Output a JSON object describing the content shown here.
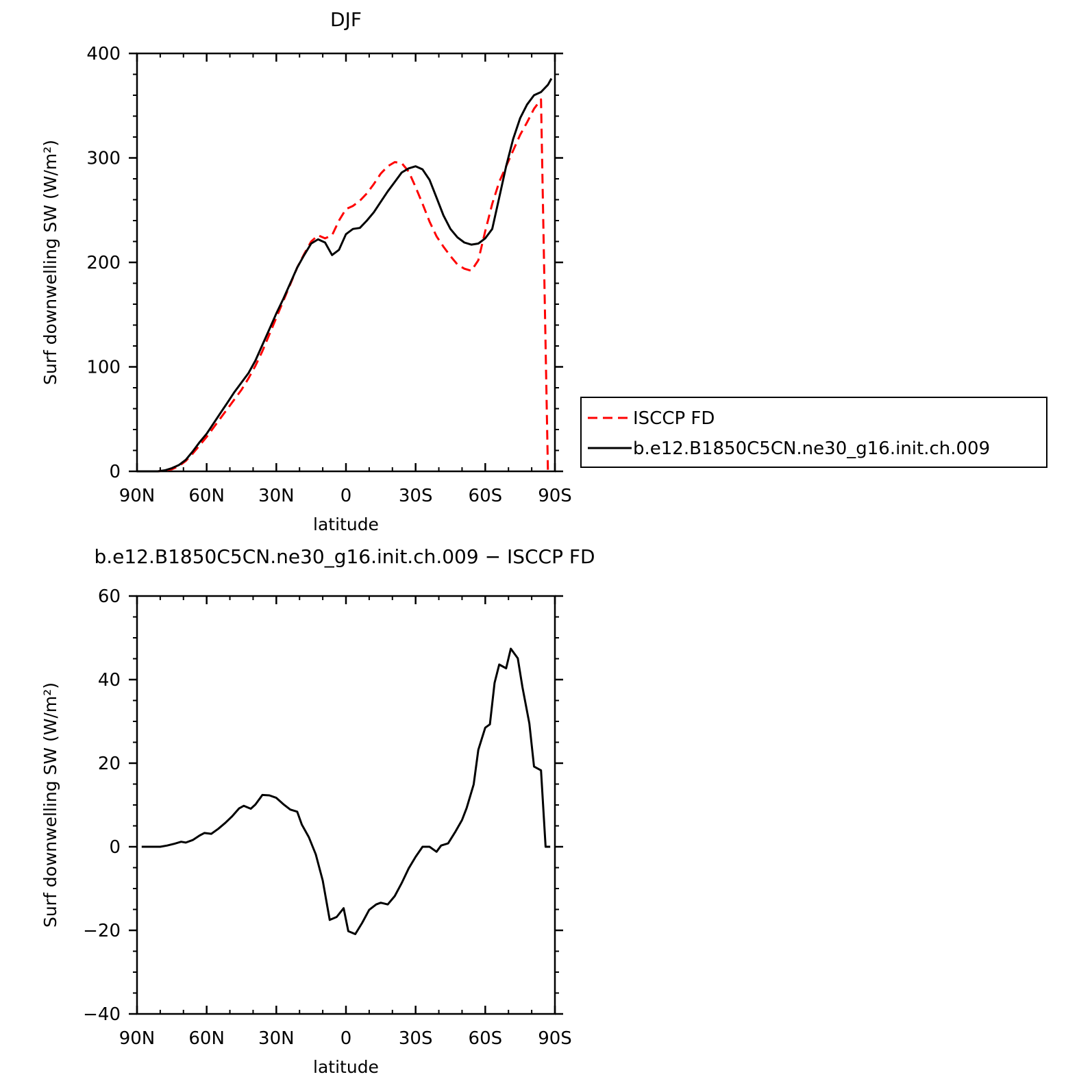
{
  "chart_data": [
    {
      "type": "line",
      "title": "DJF",
      "xlabel": "latitude",
      "ylabel": "Surf downwelling SW (W/m²)",
      "xlim": [
        90,
        -90
      ],
      "ylim": [
        0,
        400
      ],
      "x_ticks": [
        {
          "value": 90,
          "label": "90N"
        },
        {
          "value": 60,
          "label": "60N"
        },
        {
          "value": 30,
          "label": "30N"
        },
        {
          "value": 0,
          "label": "0"
        },
        {
          "value": -30,
          "label": "30S"
        },
        {
          "value": -60,
          "label": "60S"
        },
        {
          "value": -90,
          "label": "90S"
        }
      ],
      "y_ticks": [
        {
          "value": 0,
          "label": "0"
        },
        {
          "value": 100,
          "label": "100"
        },
        {
          "value": 200,
          "label": "200"
        },
        {
          "value": 300,
          "label": "300"
        },
        {
          "value": 400,
          "label": "400"
        }
      ],
      "legend_position": "right",
      "series": [
        {
          "name": "ISCCP FD",
          "color": "#ff0000",
          "dash": "dashed",
          "x": [
            90,
            87,
            84,
            81,
            78,
            75,
            72,
            69,
            66,
            63,
            60,
            57,
            54,
            51,
            48,
            45,
            42,
            39,
            36,
            33,
            30,
            27,
            24,
            21,
            18,
            15,
            12,
            9,
            6,
            3,
            0,
            -3,
            -6,
            -9,
            -12,
            -15,
            -18,
            -21,
            -24,
            -27,
            -30,
            -33,
            -36,
            -39,
            -42,
            -45,
            -48,
            -51,
            -54,
            -57,
            -60,
            -63,
            -66,
            -69,
            -72,
            -75,
            -78,
            -81,
            -84,
            -87,
            -88.5
          ],
          "y": [
            0,
            0,
            0,
            0,
            1,
            2,
            5,
            10,
            17,
            25,
            33,
            42,
            51,
            60,
            69,
            78,
            89,
            101,
            115,
            131,
            147,
            163,
            179,
            195,
            208,
            220,
            226,
            223,
            226,
            240,
            251,
            254,
            259,
            266,
            275,
            285,
            292,
            296,
            295,
            287,
            272,
            256,
            239,
            225,
            215,
            206,
            198,
            194,
            192,
            202,
            230,
            256,
            277,
            292,
            307,
            322,
            334,
            347,
            356,
            0,
            0
          ]
        },
        {
          "name": "b.e12.B1850C5CN.ne30_g16.init.ch.009",
          "color": "#000000",
          "dash": "solid",
          "x": [
            90,
            87,
            84,
            81,
            78,
            75,
            72,
            69,
            66,
            63,
            60,
            57,
            54,
            51,
            48,
            45,
            42,
            39,
            36,
            33,
            30,
            27,
            24,
            21,
            18,
            15,
            12,
            9,
            6,
            3,
            0,
            -3,
            -6,
            -9,
            -12,
            -15,
            -18,
            -21,
            -24,
            -27,
            -30,
            -33,
            -36,
            -39,
            -42,
            -45,
            -48,
            -51,
            -54,
            -57,
            -60,
            -63,
            -66,
            -69,
            -72,
            -75,
            -78,
            -81,
            -84,
            -87,
            -88.5
          ],
          "y": [
            0,
            0,
            0,
            0,
            1,
            3,
            6,
            11,
            19,
            28,
            36,
            46,
            56,
            66,
            76,
            85,
            94,
            106,
            121,
            136,
            151,
            165,
            180,
            195,
            207,
            218,
            222,
            219,
            207,
            212,
            227,
            232,
            233,
            240,
            248,
            258,
            268,
            277,
            286,
            290,
            292,
            289,
            279,
            262,
            245,
            232,
            224,
            219,
            217,
            218,
            223,
            232,
            262,
            292,
            318,
            338,
            351,
            360,
            363,
            370,
            376
          ]
        }
      ]
    },
    {
      "type": "line",
      "title": "b.e12.B1850C5CN.ne30_g16.init.ch.009 − ISCCP FD",
      "xlabel": "latitude",
      "ylabel": "Surf downwelling SW (W/m²)",
      "xlim": [
        90,
        -90
      ],
      "ylim": [
        -40,
        60
      ],
      "x_ticks": [
        {
          "value": 90,
          "label": "90N"
        },
        {
          "value": 60,
          "label": "60N"
        },
        {
          "value": 30,
          "label": "30N"
        },
        {
          "value": 0,
          "label": "0"
        },
        {
          "value": -30,
          "label": "30S"
        },
        {
          "value": -60,
          "label": "60S"
        },
        {
          "value": -90,
          "label": "90S"
        }
      ],
      "y_ticks": [
        {
          "value": -40,
          "label": "−40"
        },
        {
          "value": -20,
          "label": "−20"
        },
        {
          "value": 0,
          "label": "0"
        },
        {
          "value": 20,
          "label": "20"
        },
        {
          "value": 40,
          "label": "40"
        },
        {
          "value": 60,
          "label": "60"
        }
      ],
      "series": [
        {
          "color": "#000000",
          "dash": "solid",
          "x": [
            88,
            84,
            80,
            77,
            74,
            71,
            69,
            66,
            63,
            61,
            58,
            55,
            52,
            49,
            46,
            44,
            41,
            39,
            36,
            33,
            30,
            27,
            24,
            21,
            19,
            16,
            13,
            10,
            7,
            4,
            1,
            -1,
            -4,
            -7,
            -10,
            -13,
            -15,
            -18,
            -21,
            -24,
            -27,
            -30,
            -33,
            -36,
            -39,
            -41,
            -44,
            -47,
            -50,
            -52,
            -55,
            -57,
            -60,
            -62,
            -64,
            -66,
            -69,
            -71,
            -74,
            -76,
            -79,
            -81,
            -84,
            -86,
            -88
          ],
          "y": [
            0,
            0,
            0,
            0.3,
            0.7,
            1.2,
            1.0,
            1.6,
            2.7,
            3.3,
            3.1,
            4.3,
            5.7,
            7.3,
            9.2,
            9.8,
            9.1,
            10.1,
            12.4,
            12.3,
            11.7,
            10.2,
            8.9,
            8.4,
            5.3,
            2.3,
            -1.8,
            -8.1,
            -17.5,
            -16.8,
            -14.7,
            -20.2,
            -20.9,
            -18.2,
            -15.1,
            -13.8,
            -13.4,
            -13.8,
            -11.8,
            -8.7,
            -5.2,
            -2.4,
            0,
            0,
            -1.2,
            0.3,
            0.8,
            3.5,
            6.4,
            9.3,
            14.9,
            23.2,
            28.5,
            29.3,
            39.2,
            43.6,
            42.7,
            47.4,
            45.1,
            38.2,
            29.5,
            19.2,
            18.3,
            0,
            0
          ]
        }
      ]
    }
  ]
}
